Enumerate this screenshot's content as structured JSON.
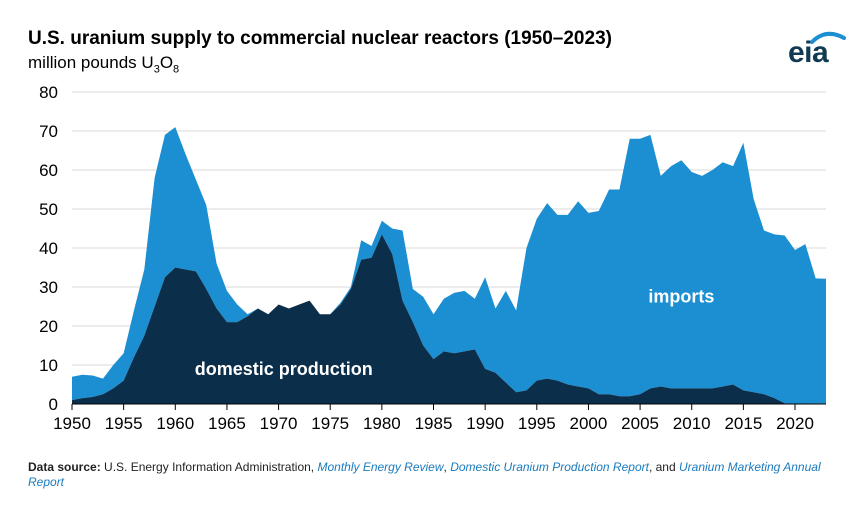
{
  "header": {
    "title": "U.S. uranium supply to commercial nuclear reactors (1950–2023)",
    "subtitle_prefix": "million pounds U",
    "subtitle_sub1": "3",
    "subtitle_mid": "O",
    "subtitle_sub2": "8"
  },
  "logo": {
    "text": "eia",
    "icon": "eia-logo-icon"
  },
  "source": {
    "label": "Data source:",
    "text1": " U.S. Energy Information Administration, ",
    "link1": "Monthly Energy Review",
    "sep1": ", ",
    "link2": "Domestic Uranium Production Report",
    "sep2": ", and ",
    "link3": "Uranium Marketing Annual Report"
  },
  "colors": {
    "domestic": "#0b2f4a",
    "imports": "#1b8fd2",
    "grid": "#d9d9d9"
  },
  "chart_data": {
    "type": "area",
    "stacked": true,
    "title": "U.S. uranium supply to commercial nuclear reactors (1950–2023)",
    "ylabel": "million pounds U3O8",
    "xlim": [
      1950,
      2023
    ],
    "ylim": [
      0,
      80
    ],
    "yticks": [
      0,
      10,
      20,
      30,
      40,
      50,
      60,
      70,
      80
    ],
    "xticks": [
      1950,
      1955,
      1960,
      1965,
      1970,
      1975,
      1980,
      1985,
      1990,
      1995,
      2000,
      2005,
      2010,
      2015,
      2020
    ],
    "grid": true,
    "annotations": [
      {
        "text": "domestic production",
        "x": 1970.5,
        "y": 7.5,
        "color": "#ffffff"
      },
      {
        "text": "imports",
        "x": 2009.0,
        "y": 26.0,
        "color": "#ffffff"
      }
    ],
    "x": [
      1950,
      1951,
      1952,
      1953,
      1954,
      1955,
      1956,
      1957,
      1958,
      1959,
      1960,
      1961,
      1962,
      1963,
      1964,
      1965,
      1966,
      1967,
      1968,
      1969,
      1970,
      1971,
      1972,
      1973,
      1974,
      1975,
      1976,
      1977,
      1978,
      1979,
      1980,
      1981,
      1982,
      1983,
      1984,
      1985,
      1986,
      1987,
      1988,
      1989,
      1990,
      1991,
      1992,
      1993,
      1994,
      1995,
      1996,
      1997,
      1998,
      1999,
      2000,
      2001,
      2002,
      2003,
      2004,
      2005,
      2006,
      2007,
      2008,
      2009,
      2010,
      2011,
      2012,
      2013,
      2014,
      2015,
      2016,
      2017,
      2018,
      2019,
      2020,
      2021,
      2022,
      2023
    ],
    "series": [
      {
        "name": "domestic production",
        "values": [
          1.0,
          1.5,
          1.8,
          2.5,
          4.0,
          6.0,
          12.0,
          17.5,
          25.0,
          32.5,
          35.0,
          34.5,
          34.0,
          29.5,
          24.5,
          21.0,
          21.0,
          22.5,
          24.5,
          23.0,
          25.5,
          24.5,
          25.5,
          26.5,
          23.0,
          23.0,
          25.5,
          29.5,
          37.0,
          37.5,
          43.5,
          38.5,
          26.5,
          21.0,
          15.0,
          11.5,
          13.5,
          13.0,
          13.5,
          14.0,
          9.0,
          8.0,
          5.5,
          3.0,
          3.5,
          6.0,
          6.5,
          6.0,
          5.0,
          4.5,
          4.0,
          2.5,
          2.5,
          2.0,
          2.0,
          2.5,
          4.0,
          4.5,
          4.0,
          4.0,
          4.0,
          4.0,
          4.0,
          4.5,
          5.0,
          3.5,
          3.0,
          2.5,
          1.5,
          0.2,
          0.0,
          0.0,
          0.2,
          0.1
        ]
      },
      {
        "name": "imports",
        "values": [
          6.0,
          6.0,
          5.5,
          4.0,
          6.0,
          7.0,
          12.0,
          17.0,
          33.0,
          36.5,
          36.0,
          29.5,
          23.5,
          21.5,
          11.5,
          8.0,
          4.5,
          0.5,
          0.0,
          0.0,
          0.0,
          0.0,
          0.0,
          0.0,
          0.0,
          0.0,
          0.5,
          0.5,
          5.0,
          3.0,
          3.5,
          6.5,
          18.0,
          8.5,
          12.5,
          11.5,
          13.5,
          15.5,
          15.5,
          13.0,
          23.5,
          16.5,
          23.5,
          21.0,
          36.5,
          41.5,
          45.0,
          42.5,
          43.5,
          47.5,
          45.0,
          47.0,
          52.5,
          53.0,
          66.0,
          65.5,
          65.0,
          54.0,
          57.0,
          58.5,
          55.5,
          54.5,
          56.0,
          57.5,
          56.0,
          63.5,
          49.5,
          42.0,
          42.0,
          43.0,
          39.5,
          41.0,
          32.0,
          32.0
        ]
      }
    ]
  }
}
